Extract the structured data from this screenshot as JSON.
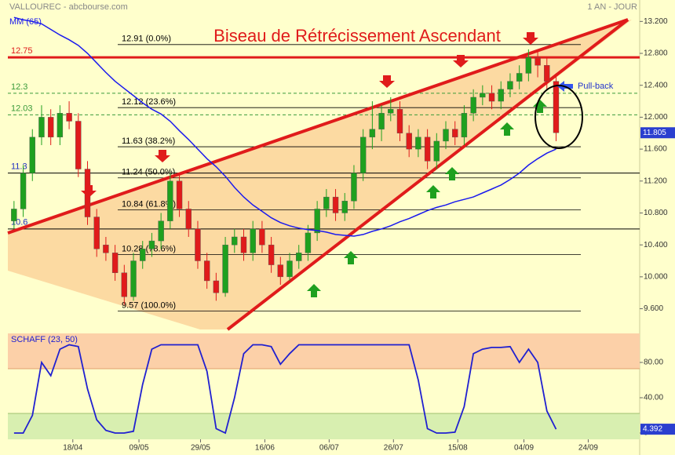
{
  "chart_data": [
    {
      "type": "candlestick",
      "subtitle": "VALLOUREC - abcbourse.com",
      "period": "1 AN - JOUR",
      "title": "Biseau de Rétrécissement Ascendant",
      "annotation": "Pull-back",
      "xlim": [
        -0.5,
        68.1
      ],
      "ylim": [
        9.34,
        13.39
      ],
      "yticks": [
        {
          "value": 13.2,
          "label": "13.200"
        },
        {
          "value": 12.8,
          "label": "12.800"
        },
        {
          "value": 12.4,
          "label": "12.400"
        },
        {
          "value": 12.0,
          "label": "12.000"
        },
        {
          "value": 11.6,
          "label": "11.600"
        },
        {
          "value": 11.2,
          "label": "11.200"
        },
        {
          "value": 10.8,
          "label": "10.800"
        },
        {
          "value": 10.4,
          "label": "10.400"
        },
        {
          "value": 10.0,
          "label": "10.000"
        },
        {
          "value": 9.6,
          "label": "9.600"
        }
      ],
      "up_color": "#1fa01f",
      "down_color": "#e01b1b",
      "candles": {
        "open": [
          10.7,
          10.85,
          11.3,
          11.75,
          12.0,
          11.75,
          12.05,
          11.95,
          11.35,
          10.75,
          10.4,
          10.3,
          10.05,
          9.75,
          10.2,
          10.35,
          10.45,
          10.7,
          11.2,
          10.85,
          10.6,
          10.2,
          9.95,
          9.8,
          10.4,
          10.5,
          10.3,
          10.6,
          10.4,
          10.15,
          10.0,
          10.2,
          10.3,
          10.55,
          10.85,
          11.0,
          10.8,
          10.95,
          11.3,
          11.75,
          11.85,
          12.05,
          12.1,
          11.8,
          11.6,
          11.75,
          11.45,
          11.7,
          11.85,
          11.75,
          12.05,
          12.25,
          12.3,
          12.2,
          12.35,
          12.45,
          12.55,
          12.75,
          12.65,
          12.45
        ],
        "high": [
          10.95,
          11.4,
          11.85,
          12.15,
          12.1,
          12.15,
          12.2,
          12.05,
          11.45,
          10.85,
          10.5,
          10.4,
          10.15,
          10.3,
          10.45,
          10.55,
          10.8,
          11.3,
          11.3,
          10.95,
          10.7,
          10.3,
          10.05,
          10.5,
          10.6,
          10.6,
          10.7,
          10.7,
          10.5,
          10.25,
          10.3,
          10.4,
          10.65,
          10.95,
          11.1,
          11.1,
          11.05,
          11.4,
          11.85,
          12.2,
          12.15,
          12.25,
          12.2,
          11.9,
          11.85,
          11.85,
          11.8,
          11.95,
          11.95,
          12.15,
          12.35,
          12.4,
          12.4,
          12.45,
          12.55,
          12.65,
          12.85,
          12.85,
          12.75,
          12.55
        ],
        "low": [
          10.6,
          10.75,
          11.2,
          11.65,
          11.65,
          11.65,
          11.85,
          11.25,
          10.65,
          10.25,
          10.2,
          9.95,
          9.65,
          9.7,
          10.1,
          10.25,
          10.35,
          10.6,
          10.75,
          10.5,
          10.1,
          9.85,
          9.7,
          9.75,
          10.3,
          10.2,
          10.2,
          10.3,
          10.05,
          9.9,
          9.95,
          10.1,
          10.2,
          10.45,
          10.75,
          10.7,
          10.7,
          10.85,
          11.2,
          11.6,
          11.7,
          11.95,
          11.7,
          11.5,
          11.5,
          11.35,
          11.35,
          11.6,
          11.65,
          11.65,
          11.95,
          12.15,
          12.1,
          12.1,
          12.25,
          12.35,
          12.45,
          12.5,
          12.35,
          11.7
        ],
        "close": [
          10.85,
          11.3,
          11.75,
          12.0,
          11.75,
          12.05,
          11.95,
          11.35,
          10.75,
          10.35,
          10.3,
          10.05,
          9.75,
          10.2,
          10.35,
          10.45,
          10.7,
          11.2,
          10.85,
          10.6,
          10.2,
          9.95,
          9.8,
          10.4,
          10.5,
          10.3,
          10.6,
          10.4,
          10.15,
          10.0,
          10.2,
          10.3,
          10.55,
          10.85,
          11.0,
          10.8,
          10.95,
          11.3,
          11.75,
          11.85,
          12.05,
          12.1,
          11.8,
          11.6,
          11.75,
          11.45,
          11.7,
          11.85,
          11.75,
          12.05,
          12.25,
          12.3,
          12.2,
          12.35,
          12.45,
          12.55,
          12.75,
          12.65,
          12.45,
          11.805
        ]
      },
      "series": [
        {
          "name": "MM (65)",
          "color": "#1a1aee",
          "values": [
            13.25,
            13.22,
            13.2,
            13.17,
            13.1,
            13.03,
            12.97,
            12.9,
            12.8,
            12.68,
            12.56,
            12.45,
            12.36,
            12.27,
            12.18,
            12.1,
            12.04,
            11.95,
            11.83,
            11.72,
            11.6,
            11.48,
            11.38,
            11.26,
            11.12,
            11.0,
            10.9,
            10.82,
            10.74,
            10.68,
            10.64,
            10.61,
            10.59,
            10.58,
            10.56,
            10.53,
            10.52,
            10.51,
            10.53,
            10.57,
            10.6,
            10.64,
            10.69,
            10.73,
            10.78,
            10.83,
            10.87,
            10.9,
            10.94,
            10.97,
            11.0,
            11.05,
            11.1,
            11.15,
            11.22,
            11.3,
            11.4,
            11.48,
            11.55,
            11.6
          ]
        }
      ],
      "levels": [
        {
          "value": 12.75,
          "color": "#e01b1b",
          "style": "solid"
        },
        {
          "value": 12.3,
          "color": "#3a9a3a",
          "style": "dashed"
        },
        {
          "value": 12.03,
          "color": "#3a9a3a",
          "style": "dashed"
        },
        {
          "value": 11.3,
          "color": "#2030c0",
          "style": "thin"
        },
        {
          "value": 10.6,
          "color": "#2030c0",
          "style": "thin"
        }
      ],
      "fibonacci": [
        {
          "value": 12.91,
          "label": "12.91 (0.0%)"
        },
        {
          "value": 12.12,
          "label": "12.12 (23.6%)"
        },
        {
          "value": 11.63,
          "label": "11.63 (38.2%)"
        },
        {
          "value": 11.24,
          "label": "11.24 (50.0%)"
        },
        {
          "value": 10.84,
          "label": "10.84 (61.8%)"
        },
        {
          "value": 10.28,
          "label": "10.28 (78.6%)"
        },
        {
          "value": 9.57,
          "label": "9.57 (100.0%)"
        }
      ]
    },
    {
      "type": "line",
      "xlim": [
        -0.5,
        68.1
      ],
      "ylim": [
        -7.1,
        112.9
      ],
      "xticks": [
        {
          "value": 6.4,
          "label": "18/04"
        },
        {
          "value": 13.6,
          "label": "09/05"
        },
        {
          "value": 20.3,
          "label": "29/05"
        },
        {
          "value": 27.3,
          "label": "16/06"
        },
        {
          "value": 34.3,
          "label": "06/07"
        },
        {
          "value": 41.3,
          "label": "26/07"
        },
        {
          "value": 48.3,
          "label": "15/08"
        },
        {
          "value": 55.5,
          "label": "04/09"
        },
        {
          "value": 62.5,
          "label": "24/09"
        }
      ],
      "yticks": [
        {
          "value": 80,
          "label": "80.00"
        },
        {
          "value": 40,
          "label": "40.00"
        },
        0
      ],
      "series": [
        {
          "name": "SCHAFF (23, 50)",
          "color": "#2020d0",
          "values": [
            0,
            0,
            20,
            80,
            65,
            95,
            100,
            98,
            50,
            15,
            3,
            0,
            0,
            2,
            55,
            95,
            100,
            100,
            100,
            100,
            100,
            70,
            5,
            0,
            40,
            90,
            100,
            100,
            98,
            78,
            90,
            100,
            100,
            100,
            100,
            100,
            100,
            100,
            100,
            100,
            100,
            100,
            100,
            100,
            60,
            5,
            0,
            0,
            1,
            30,
            90,
            95,
            97,
            97,
            98,
            80,
            95,
            80,
            25,
            4.392
          ]
        }
      ]
    }
  ]
}
